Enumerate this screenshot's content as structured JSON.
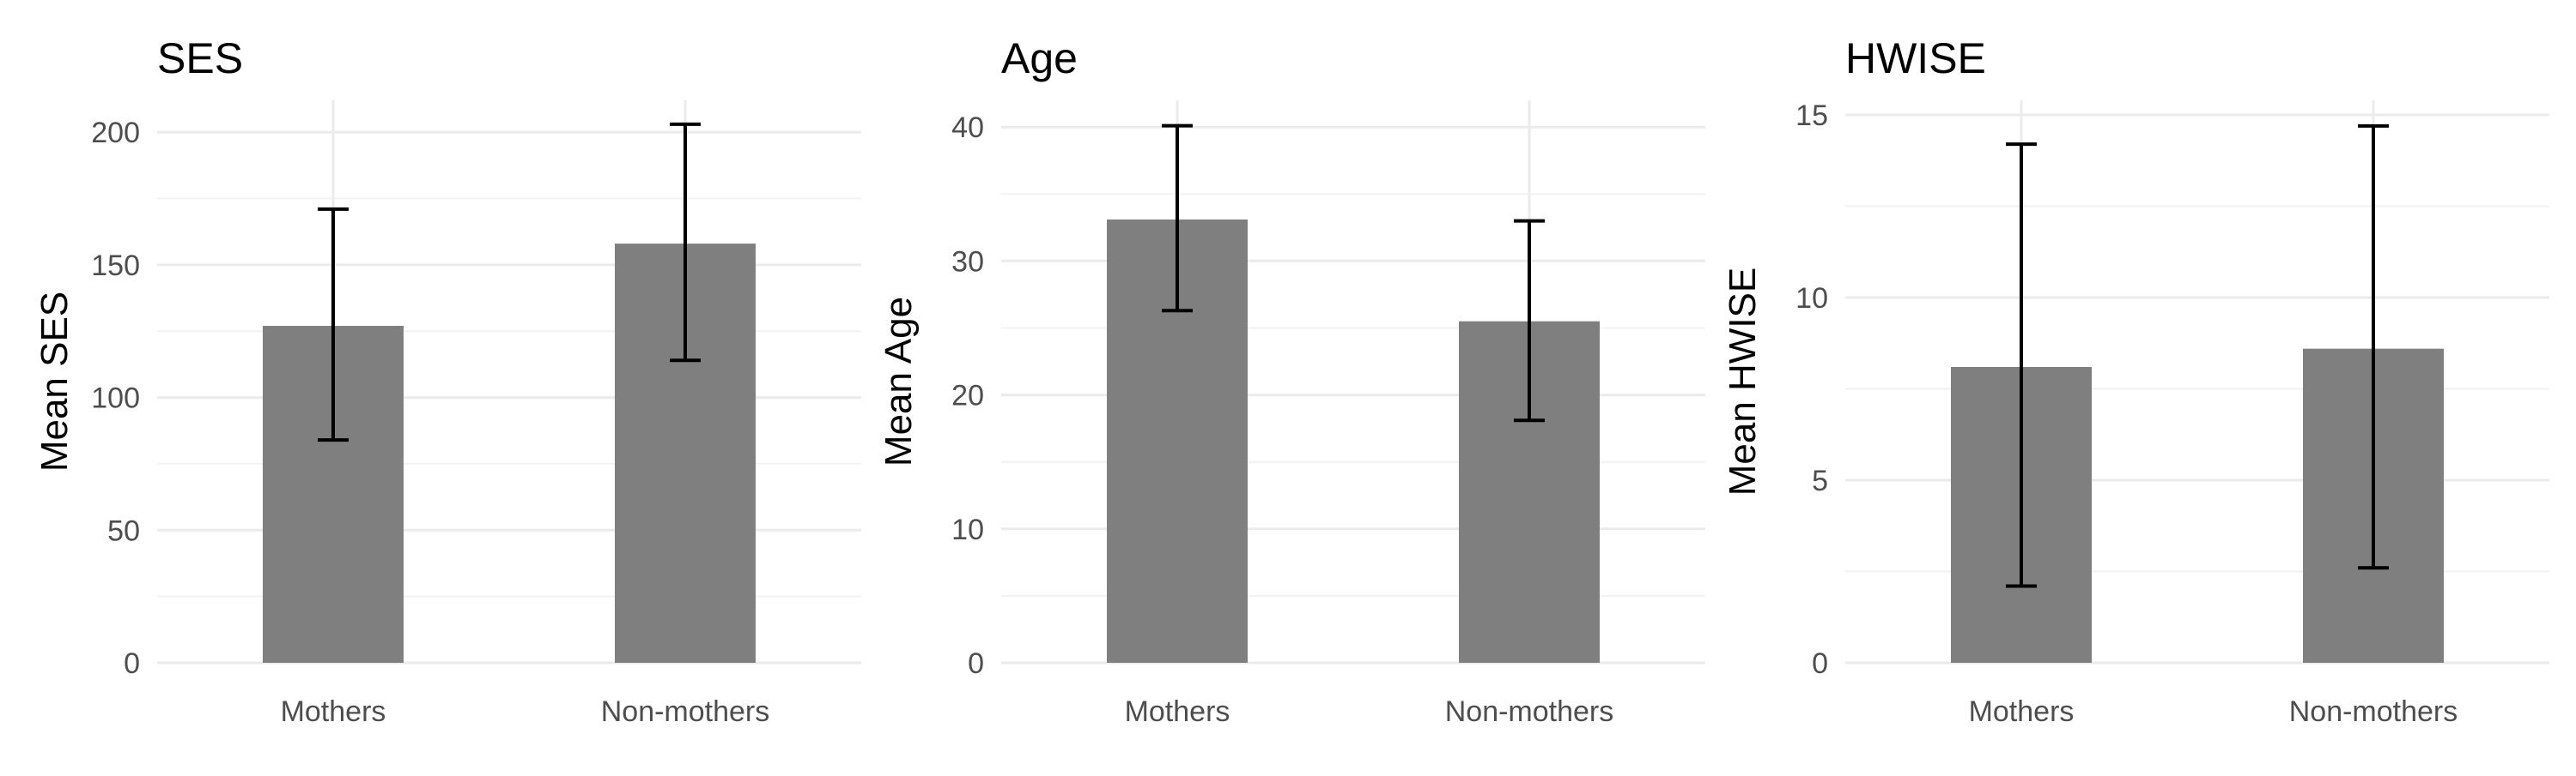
{
  "chart_data": [
    {
      "type": "bar",
      "title": "SES",
      "xlabel": "",
      "ylabel": "Mean SES",
      "categories": [
        "Mothers",
        "Non-mothers"
      ],
      "values": [
        127,
        158
      ],
      "error_low": [
        84,
        114
      ],
      "error_high": [
        171,
        203
      ],
      "ylim": [
        0,
        212
      ],
      "yticks": [
        0,
        50,
        100,
        150,
        200
      ],
      "grid": true,
      "bar_color": "#7f7f7f"
    },
    {
      "type": "bar",
      "title": "Age",
      "xlabel": "",
      "ylabel": "Mean Age",
      "categories": [
        "Mothers",
        "Non-mothers"
      ],
      "values": [
        33.1,
        25.5
      ],
      "error_low": [
        26.3,
        18.1
      ],
      "error_high": [
        40.1,
        33.0
      ],
      "ylim": [
        0,
        42
      ],
      "yticks": [
        0,
        10,
        20,
        30,
        40
      ],
      "grid": true,
      "bar_color": "#7f7f7f"
    },
    {
      "type": "bar",
      "title": "HWISE",
      "xlabel": "",
      "ylabel": "Mean HWISE",
      "categories": [
        "Mothers",
        "Non-mothers"
      ],
      "values": [
        8.1,
        8.6
      ],
      "error_low": [
        2.1,
        2.6
      ],
      "error_high": [
        14.2,
        14.7
      ],
      "ylim": [
        0,
        15.4
      ],
      "yticks": [
        0,
        5,
        10,
        15
      ],
      "grid": true,
      "bar_color": "#7f7f7f"
    }
  ]
}
